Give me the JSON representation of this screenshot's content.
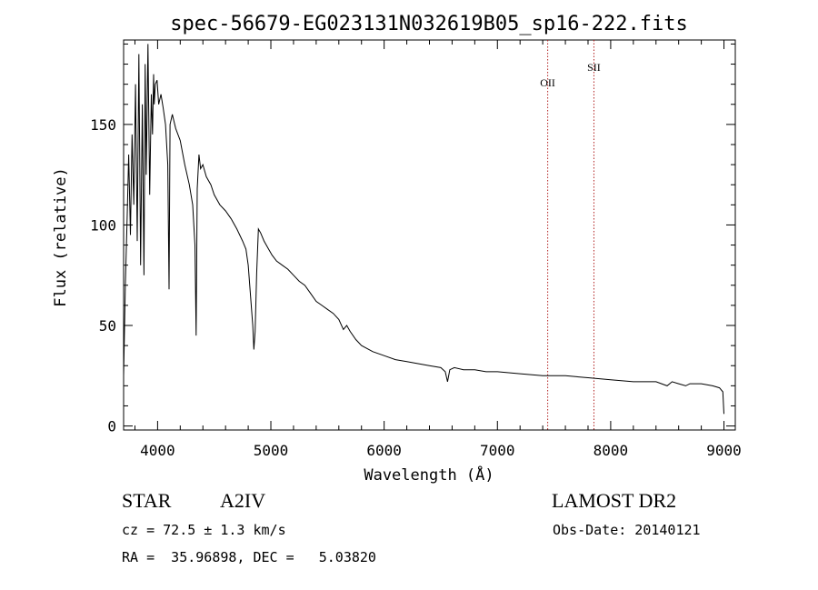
{
  "chart_data": {
    "type": "line",
    "title": "spec-56679-EG023131N032619B05_sp16-222.fits",
    "xlabel": "Wavelength (Å)",
    "ylabel": "Flux (relative)",
    "xlim": [
      3700,
      9100
    ],
    "ylim": [
      -2,
      192
    ],
    "xticks": [
      4000,
      5000,
      6000,
      7000,
      8000,
      9000
    ],
    "yticks": [
      0,
      50,
      100,
      150
    ],
    "grid": false,
    "series": [
      {
        "x": [
          3700,
          3715,
          3730,
          3745,
          3760,
          3775,
          3790,
          3805,
          3820,
          3835,
          3850,
          3865,
          3880,
          3890,
          3900,
          3915,
          3930,
          3945,
          3955,
          3965,
          3970,
          3980,
          3995,
          4010,
          4030,
          4050,
          4070,
          4090,
          4101,
          4110,
          4130,
          4160,
          4200,
          4240,
          4280,
          4310,
          4330,
          4340,
          4350,
          4365,
          4380,
          4400,
          4430,
          4470,
          4500,
          4550,
          4600,
          4650,
          4700,
          4750,
          4780,
          4800,
          4820,
          4840,
          4850,
          4861,
          4875,
          4890,
          4910,
          4940,
          4980,
          5010,
          5050,
          5100,
          5150,
          5200,
          5250,
          5300,
          5350,
          5400,
          5450,
          5500,
          5550,
          5600,
          5640,
          5670,
          5700,
          5750,
          5800,
          5900,
          6000,
          6100,
          6200,
          6300,
          6400,
          6500,
          6540,
          6560,
          6580,
          6620,
          6700,
          6800,
          6900,
          7000,
          7200,
          7400,
          7600,
          7800,
          8000,
          8200,
          8400,
          8498,
          8542,
          8600,
          8662,
          8700,
          8800,
          8900,
          8960,
          8990,
          9000
        ],
        "y": [
          25,
          70,
          100,
          135,
          95,
          145,
          110,
          170,
          92,
          185,
          80,
          160,
          75,
          180,
          125,
          190,
          115,
          165,
          145,
          175,
          160,
          170,
          172,
          160,
          165,
          158,
          150,
          130,
          68,
          150,
          155,
          148,
          142,
          130,
          120,
          110,
          90,
          45,
          118,
          135,
          128,
          130,
          124,
          120,
          115,
          110,
          107,
          103,
          98,
          92,
          88,
          80,
          65,
          50,
          38,
          47,
          76,
          98,
          96,
          92,
          88,
          85,
          82,
          80,
          78,
          75,
          72,
          70,
          66,
          62,
          60,
          58,
          56,
          53,
          48,
          50,
          47,
          43,
          40,
          37,
          35,
          33,
          32,
          31,
          30,
          29,
          27,
          22,
          28,
          29,
          28,
          28,
          27,
          27,
          26,
          25,
          25,
          24,
          23,
          22,
          22,
          20,
          22,
          21,
          20,
          21,
          21,
          20,
          19,
          17,
          6
        ]
      }
    ],
    "annotations": [
      {
        "label": "OII",
        "x": 7444
      },
      {
        "label": "SII",
        "x": 7852
      }
    ]
  },
  "info": {
    "object_type": "STAR",
    "subclass": "A2IV",
    "survey": "LAMOST DR2",
    "velocity": "cz = 72.5 ± 1.3 km/s",
    "obs_date": "Obs-Date: 20140121",
    "coords": "RA =  35.96898, DEC =   5.03820"
  }
}
